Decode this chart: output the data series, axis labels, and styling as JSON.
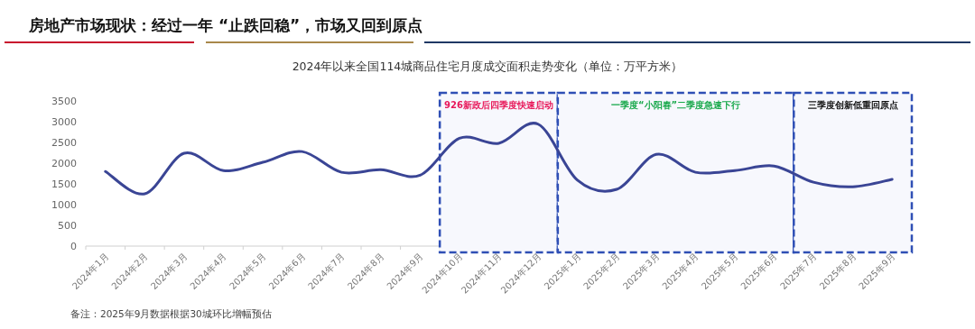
{
  "chart_data": {
    "type": "line",
    "title": "房地产市场现状：经过一年 “止跌回稳”，市场又回到原点",
    "subtitle": "2024年以来全国114城商品住宅月度成交面积走势变化（单位：万平方米）",
    "categories": [
      "2024年1月",
      "2024年2月",
      "2024年3月",
      "2024年4月",
      "2024年5月",
      "2024年6月",
      "2024年7月",
      "2024年8月",
      "2024年9月",
      "2024年10月",
      "2024年11月",
      "2024年12月",
      "2025年1月",
      "2025年2月",
      "2025年3月",
      "2025年4月",
      "2025年5月",
      "2025年6月",
      "2025年7月",
      "2025年8月",
      "2025年9月"
    ],
    "series": [
      {
        "color": "#3a4595",
        "values": [
          1800,
          1260,
          2240,
          1820,
          2020,
          2280,
          1780,
          1840,
          1710,
          2600,
          2480,
          2940,
          1590,
          1370,
          2210,
          1780,
          1820,
          1930,
          1540,
          1430,
          1610
        ]
      }
    ],
    "ylim": [
      0,
      3500
    ],
    "yticks": [
      0,
      500,
      1000,
      1500,
      2000,
      2500,
      3000,
      3500
    ],
    "grid": false,
    "marker": "none",
    "line_style": "solid",
    "bands": [
      {
        "axis": "x",
        "from": "2024年10月",
        "to": "2024年12月",
        "label": "926新政后四季度快速启动",
        "color": "#2f4fb5"
      },
      {
        "axis": "x",
        "from": "2025年1月",
        "to": "2025年6月",
        "label": "一季度“小阳春”二季度急速下行",
        "color": "#2f4fb5"
      },
      {
        "axis": "x",
        "from": "2025年7月",
        "to": "2025年9月",
        "label": "三季度创新低重回原点",
        "color": "#2f4fb5"
      }
    ],
    "annotations": [
      "备注：2025年9月数据根据30城环比增幅预估"
    ]
  }
}
